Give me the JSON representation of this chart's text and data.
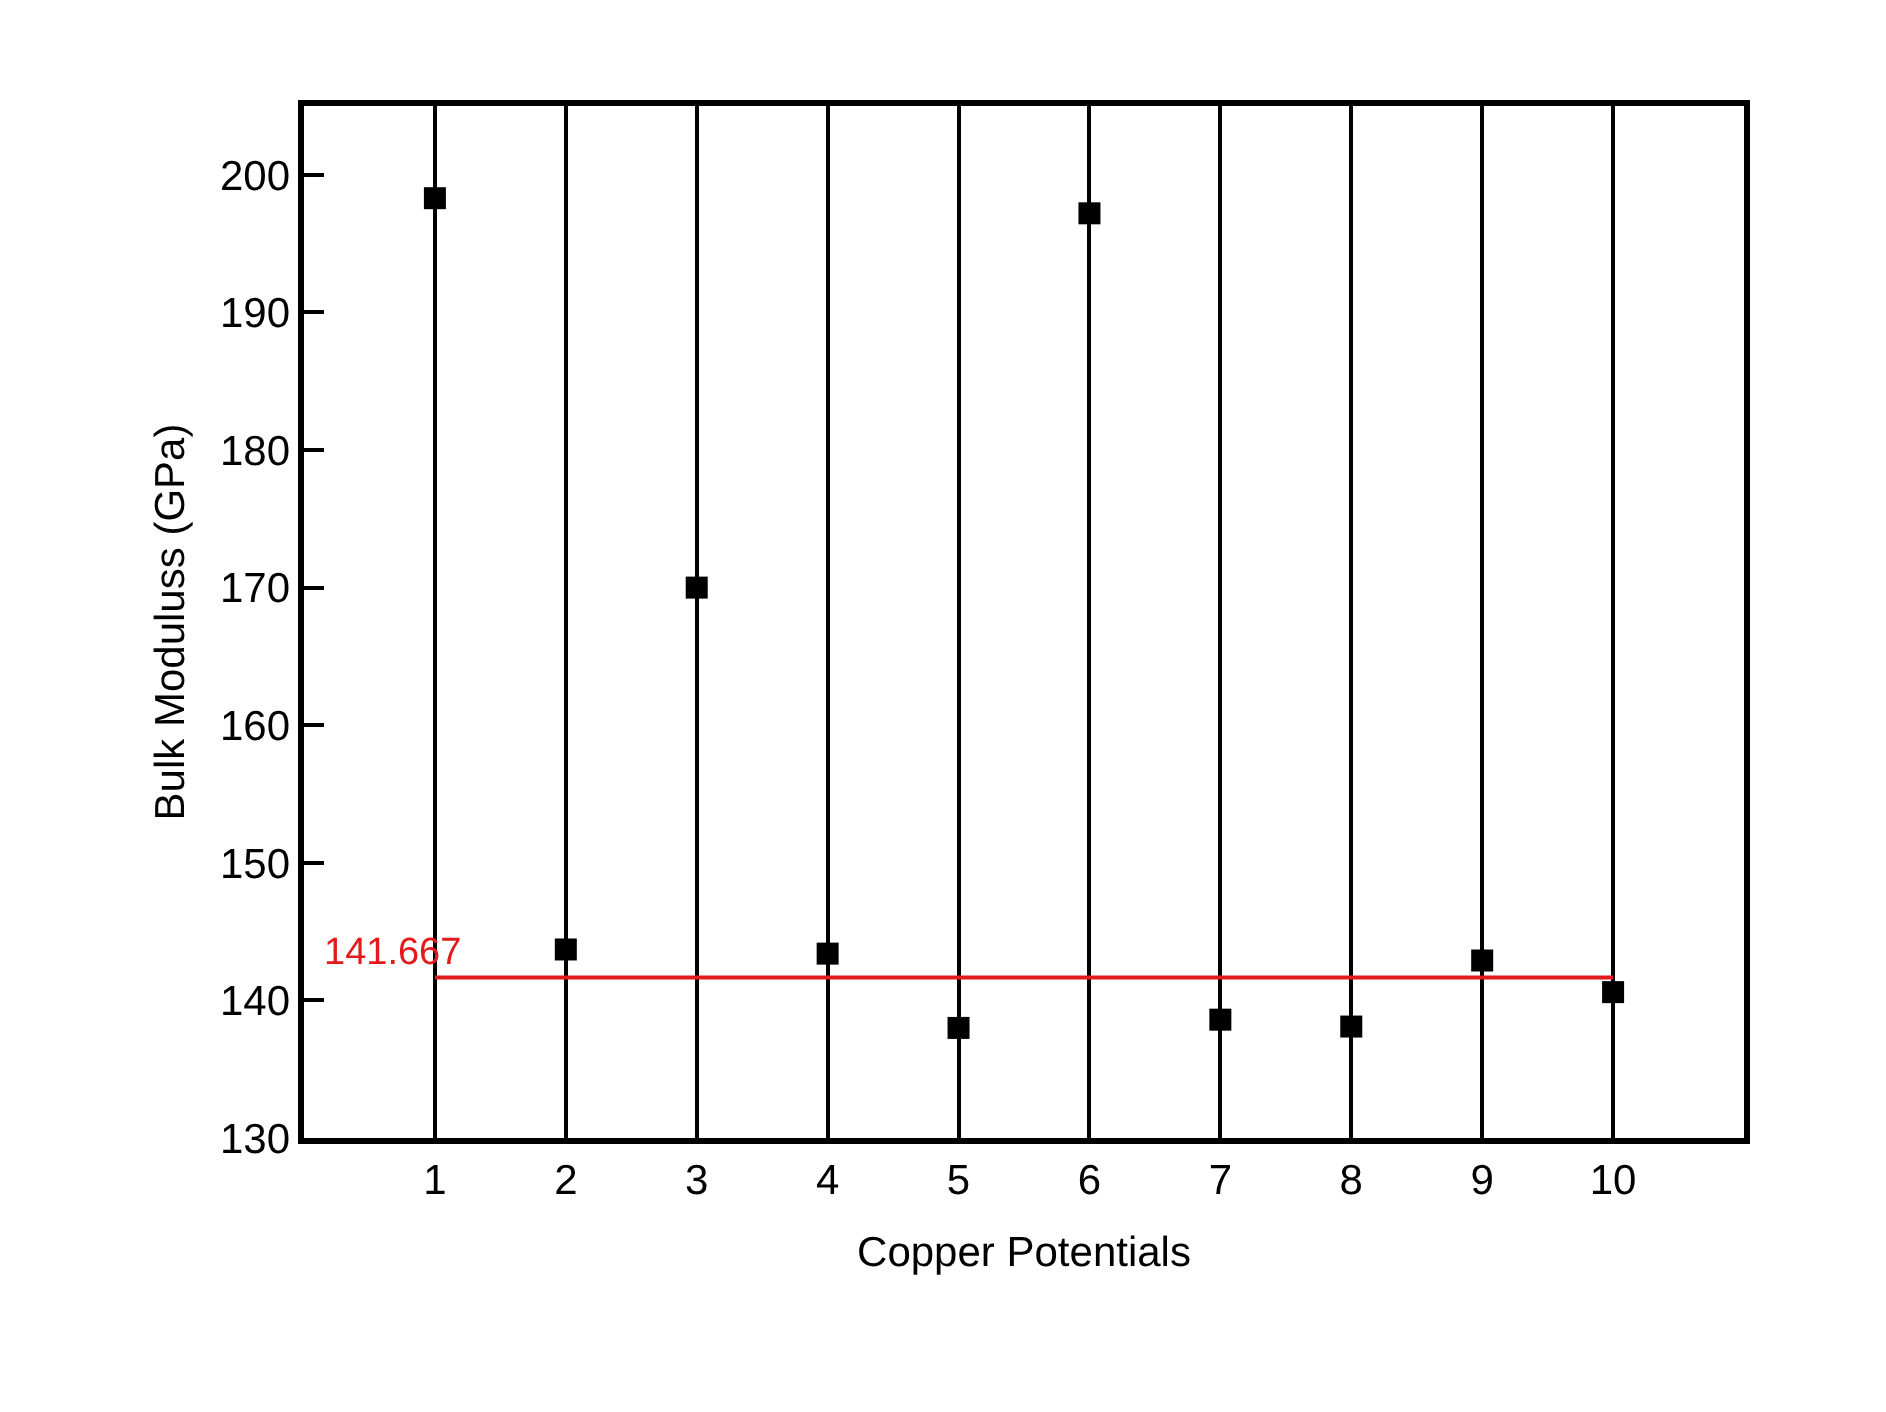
{
  "chart_data": {
    "type": "scatter",
    "xlabel": "Copper Potentials",
    "ylabel": "Bulk Moduluss (GPa)",
    "x": [
      1,
      2,
      3,
      4,
      5,
      6,
      7,
      8,
      9,
      10
    ],
    "series": [
      {
        "color": "#000000",
        "values": [
          198.3,
          143.7,
          170.0,
          143.4,
          138.0,
          197.2,
          138.6,
          138.1,
          142.9,
          140.6
        ]
      }
    ],
    "xlim": [
      0,
      11
    ],
    "xticks": [
      1,
      2,
      3,
      4,
      5,
      6,
      7,
      8,
      9,
      10
    ],
    "ylim": [
      130,
      205
    ],
    "yticks": [
      130,
      140,
      150,
      160,
      170,
      180,
      190,
      200
    ],
    "grid": "x",
    "marker": "square",
    "ref_lines": [
      {
        "axis": "y",
        "value": 141.667,
        "label": "141.667",
        "color": "#e31a1c"
      }
    ]
  }
}
